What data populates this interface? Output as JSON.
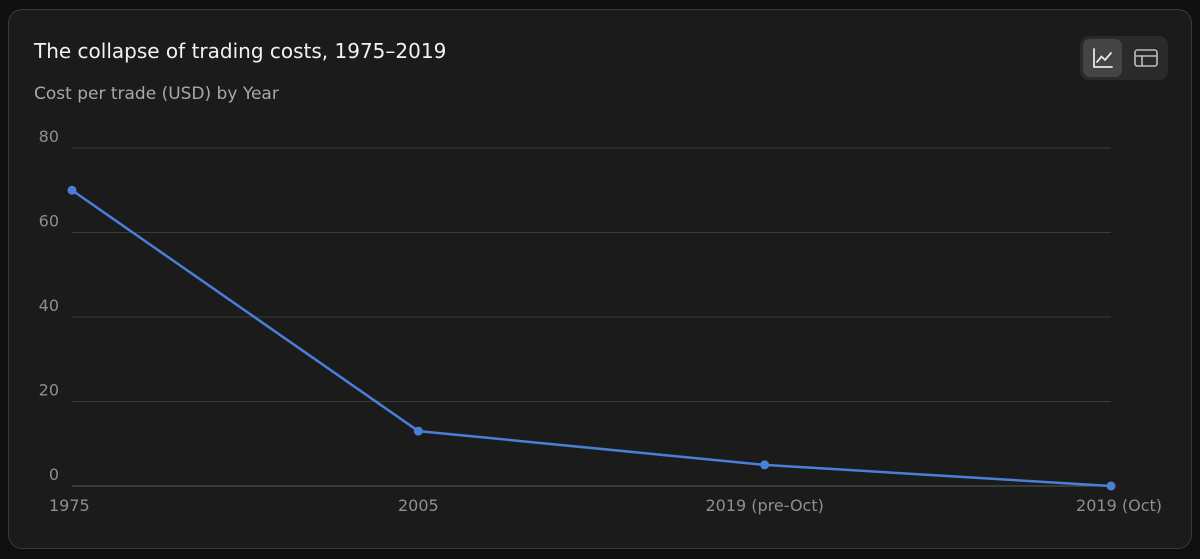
{
  "title": "The collapse of trading costs, 1975–2019",
  "subtitle": "Cost per trade (USD) by Year",
  "view_toggle": {
    "options": [
      {
        "name": "line-chart-view",
        "icon": "line-chart-icon",
        "active": true
      },
      {
        "name": "table-view",
        "icon": "table-icon",
        "active": false
      }
    ]
  },
  "colors": {
    "line": "#4a7fd8",
    "grid": "#3b3b3b",
    "axis": "#5a5a5a"
  },
  "chart_data": {
    "type": "line",
    "categories": [
      "1975",
      "2005",
      "2019 (pre-Oct)",
      "2019 (Oct)"
    ],
    "series": [
      {
        "values": [
          70,
          13,
          5,
          0
        ]
      }
    ],
    "y_ticks": [
      "0",
      "20",
      "40",
      "60",
      "80"
    ],
    "ylim": [
      0,
      80
    ],
    "grid": true,
    "legend": "none"
  }
}
